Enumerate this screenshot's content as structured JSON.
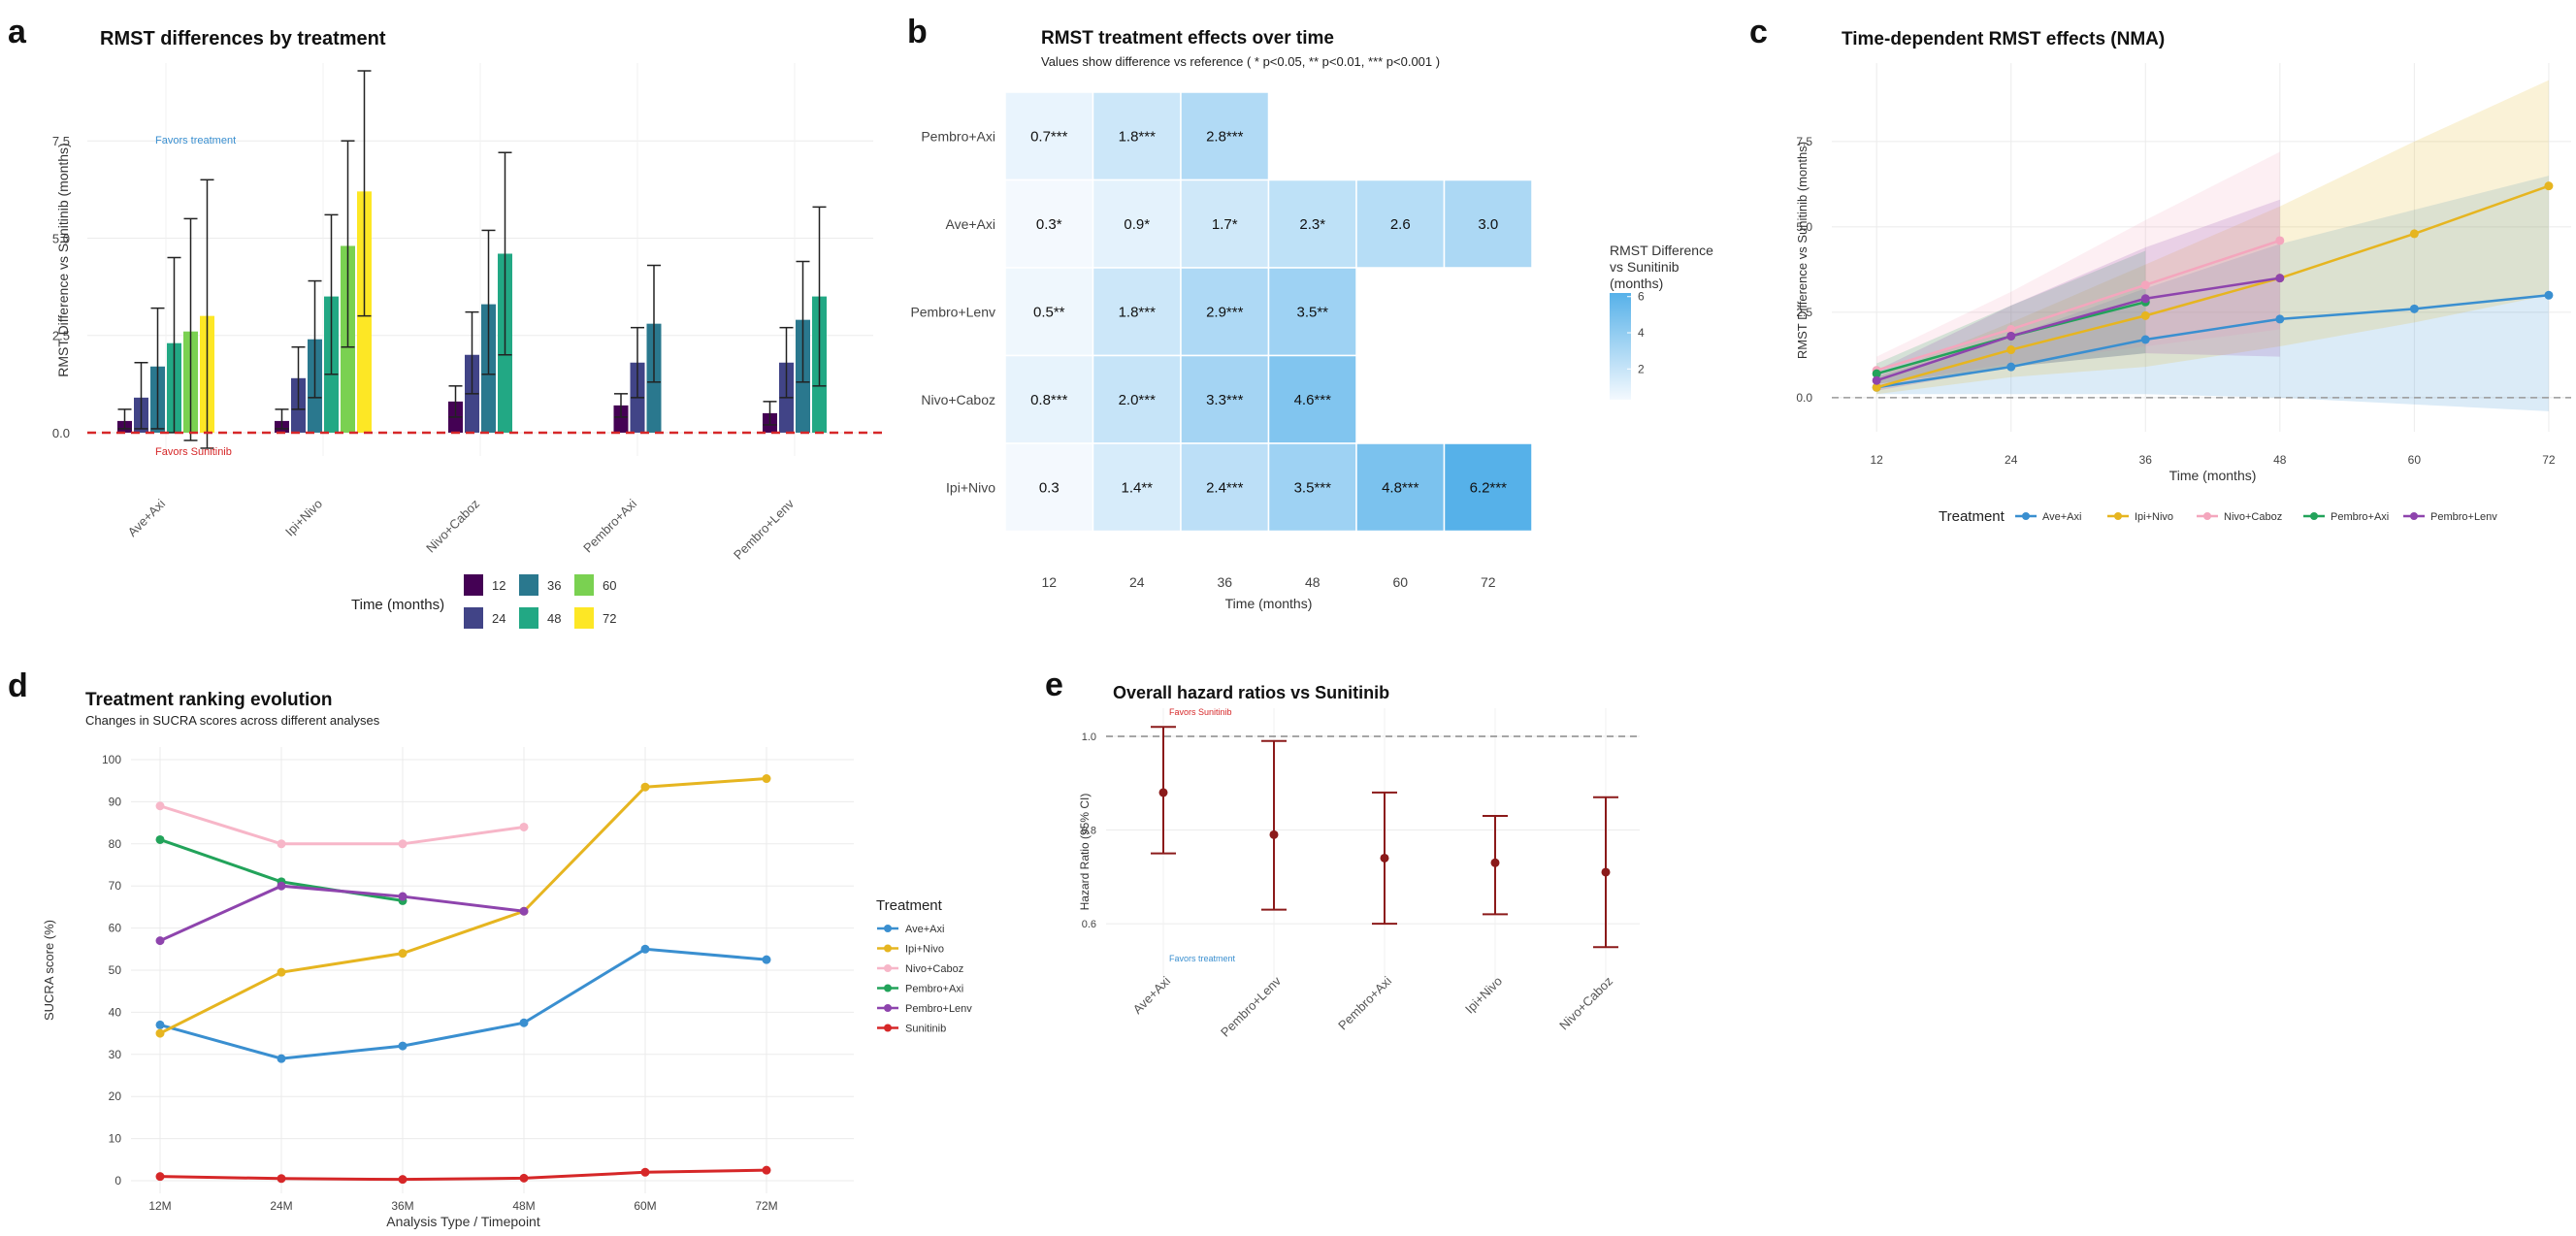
{
  "panels": {
    "a": {
      "letter": "a",
      "chart_data": {
        "type": "bar",
        "title": "RMST differences by treatment",
        "xlabel": "",
        "ylabel": "RMST Difference vs Sunitinib (months)",
        "ylim": [
          -0.6,
          9.5
        ],
        "yticks": [
          "0.0",
          "2.5",
          "5.0",
          "7.5"
        ],
        "ytick_values": [
          0,
          2.5,
          5,
          7.5
        ],
        "categories": [
          "Ave+Axi",
          "Ipi+Nivo",
          "Nivo+Caboz",
          "Pembro+Axi",
          "Pembro+Lenv"
        ],
        "legend_title": "Time (months)",
        "legend_position": "bottom",
        "grid": true,
        "reference_line": 0,
        "annotations": [
          "Favors treatment",
          "Favors Sunitinib"
        ],
        "series": [
          {
            "name": "12",
            "color": "#440154",
            "values": [
              0.3,
              0.3,
              0.8,
              0.7,
              0.5
            ],
            "lower": [
              0.1,
              0.1,
              0.4,
              0.4,
              0.2
            ],
            "upper": [
              0.6,
              0.6,
              1.2,
              1.0,
              0.8
            ]
          },
          {
            "name": "24",
            "color": "#414487",
            "values": [
              0.9,
              1.4,
              2.0,
              1.8,
              1.8
            ],
            "lower": [
              0.1,
              0.6,
              1.0,
              0.9,
              0.9
            ],
            "upper": [
              1.8,
              2.2,
              3.1,
              2.7,
              2.7
            ]
          },
          {
            "name": "36",
            "color": "#2A788E",
            "values": [
              1.7,
              2.4,
              3.3,
              2.8,
              2.9
            ],
            "lower": [
              0.1,
              0.9,
              1.5,
              1.3,
              1.3
            ],
            "upper": [
              3.2,
              3.9,
              5.2,
              4.3,
              4.4
            ]
          },
          {
            "name": "48",
            "color": "#22A884",
            "values": [
              2.3,
              3.5,
              4.6,
              null,
              3.5
            ],
            "lower": [
              0.0,
              1.5,
              2.0,
              null,
              1.2
            ],
            "upper": [
              4.5,
              5.6,
              7.2,
              null,
              5.8
            ]
          },
          {
            "name": "60",
            "color": "#7AD151",
            "values": [
              2.6,
              4.8,
              null,
              null,
              null
            ],
            "lower": [
              -0.2,
              2.2,
              null,
              null,
              null
            ],
            "upper": [
              5.5,
              7.5,
              null,
              null,
              null
            ]
          },
          {
            "name": "72",
            "color": "#FDE725",
            "values": [
              3.0,
              6.2,
              null,
              null,
              null
            ],
            "lower": [
              -0.4,
              3.0,
              null,
              null,
              null
            ],
            "upper": [
              6.5,
              9.3,
              null,
              null,
              null
            ]
          }
        ]
      }
    },
    "b": {
      "letter": "b",
      "chart_data": {
        "type": "heatmap",
        "title": "RMST treatment effects over time",
        "subtitle": "Values show difference vs reference ( * p<0.05, ** p<0.01, *** p<0.001 )",
        "xlabel": "Time (months)",
        "ylabel": "",
        "x": [
          "12",
          "24",
          "36",
          "48",
          "60",
          "72"
        ],
        "y": [
          "Pembro+Axi",
          "Ave+Axi",
          "Pembro+Lenv",
          "Nivo+Caboz",
          "Ipi+Nivo"
        ],
        "values": [
          [
            0.7,
            1.8,
            2.8,
            null,
            null,
            null
          ],
          [
            0.3,
            0.9,
            1.7,
            2.3,
            2.6,
            3.0
          ],
          [
            0.5,
            1.8,
            2.9,
            3.5,
            null,
            null
          ],
          [
            0.8,
            2.0,
            3.3,
            4.6,
            null,
            null
          ],
          [
            0.3,
            1.4,
            2.4,
            3.5,
            4.8,
            6.2
          ]
        ],
        "labels": [
          [
            "0.7***",
            "1.8***",
            "2.8***",
            "",
            "",
            ""
          ],
          [
            "0.3*",
            "0.9*",
            "1.7*",
            "2.3*",
            "2.6",
            "3.0"
          ],
          [
            "0.5**",
            "1.8***",
            "2.9***",
            "3.5**",
            "",
            ""
          ],
          [
            "0.8***",
            "2.0***",
            "3.3***",
            "4.6***",
            "",
            ""
          ],
          [
            "0.3",
            "1.4**",
            "2.4***",
            "3.5***",
            "4.8***",
            "6.2***"
          ]
        ],
        "colorbar": {
          "title_lines": [
            "RMST Difference",
            "vs Sunitinib",
            "(months)"
          ],
          "ticks": [
            "2",
            "4",
            "6"
          ],
          "tick_values": [
            2,
            4,
            6
          ],
          "range": [
            0.3,
            6.2
          ],
          "low_color": "#f4f9fe",
          "high_color": "#56b1e9"
        }
      }
    },
    "c": {
      "letter": "c",
      "chart_data": {
        "type": "line",
        "title": "Time-dependent RMST effects (NMA)",
        "xlabel": "Time (months)",
        "ylabel": "RMST Difference vs Sunitinib (months)",
        "x": [
          12,
          24,
          36,
          48,
          60,
          72
        ],
        "xticks": [
          "12",
          "24",
          "36",
          "48",
          "60",
          "72"
        ],
        "xlim": [
          8,
          74
        ],
        "ylim": [
          -1.0,
          9.8
        ],
        "yticks": [
          "0.0",
          "2.5",
          "5.0",
          "7.5"
        ],
        "ytick_values": [
          0,
          2.5,
          5,
          7.5
        ],
        "legend_title": "Treatment",
        "legend_position": "bottom",
        "grid": true,
        "reference_line": 0,
        "series": [
          {
            "name": "Ave+Axi",
            "color": "#3a8fd0",
            "values": [
              0.3,
              0.9,
              1.7,
              2.3,
              2.6,
              3.0
            ],
            "lower": [
              0.1,
              0.1,
              0.1,
              0.0,
              -0.2,
              -0.4
            ],
            "upper": [
              0.6,
              1.8,
              3.2,
              4.5,
              5.5,
              6.5
            ]
          },
          {
            "name": "Ipi+Nivo",
            "color": "#e6b520",
            "values": [
              0.3,
              1.4,
              2.4,
              3.5,
              4.8,
              6.2
            ],
            "lower": [
              0.1,
              0.6,
              0.9,
              1.5,
              2.2,
              3.0
            ],
            "upper": [
              0.6,
              2.2,
              3.9,
              5.6,
              7.5,
              9.3
            ]
          },
          {
            "name": "Nivo+Caboz",
            "color": "#f4a6bd",
            "values": [
              0.8,
              2.0,
              3.3,
              4.6,
              null,
              null
            ],
            "lower": [
              0.4,
              1.0,
              1.5,
              2.0,
              null,
              null
            ],
            "upper": [
              1.2,
              3.1,
              5.2,
              7.2,
              null,
              null
            ]
          },
          {
            "name": "Pembro+Axi",
            "color": "#22a35a",
            "values": [
              0.7,
              1.8,
              2.8,
              null,
              null,
              null
            ],
            "lower": [
              0.4,
              0.9,
              1.3,
              null,
              null,
              null
            ],
            "upper": [
              1.0,
              2.7,
              4.3,
              null,
              null,
              null
            ]
          },
          {
            "name": "Pembro+Lenv",
            "color": "#8e44ad",
            "values": [
              0.5,
              1.8,
              2.9,
              3.5,
              null,
              null
            ],
            "lower": [
              0.2,
              0.9,
              1.3,
              1.2,
              null,
              null
            ],
            "upper": [
              0.8,
              2.7,
              4.4,
              5.8,
              null,
              null
            ]
          }
        ]
      }
    },
    "d": {
      "letter": "d",
      "chart_data": {
        "type": "line",
        "title": "Treatment ranking evolution",
        "subtitle": "Changes in SUCRA scores across different analyses",
        "xlabel": "Analysis Type / Timepoint",
        "ylabel": "SUCRA score (%)",
        "x": [
          "12M",
          "24M",
          "36M",
          "48M",
          "60M",
          "72M"
        ],
        "ylim": [
          -3,
          103
        ],
        "yticks": [
          "0",
          "10",
          "20",
          "30",
          "40",
          "50",
          "60",
          "70",
          "80",
          "90",
          "100"
        ],
        "ytick_values": [
          0,
          10,
          20,
          30,
          40,
          50,
          60,
          70,
          80,
          90,
          100
        ],
        "legend_title": "Treatment",
        "legend_position": "right",
        "grid": true,
        "series": [
          {
            "name": "Ave+Axi",
            "color": "#3a8fd0",
            "values": [
              37,
              29,
              32,
              37.5,
              55,
              52.5
            ]
          },
          {
            "name": "Ipi+Nivo",
            "color": "#e6b520",
            "values": [
              35,
              49.5,
              54,
              64,
              93.5,
              95.5
            ]
          },
          {
            "name": "Nivo+Caboz",
            "color": "#f7b6c8",
            "values": [
              89,
              80,
              80,
              84,
              null,
              null
            ]
          },
          {
            "name": "Pembro+Axi",
            "color": "#22a35a",
            "values": [
              81,
              71,
              66.5,
              null,
              null,
              null
            ]
          },
          {
            "name": "Pembro+Lenv",
            "color": "#8e44ad",
            "values": [
              57,
              70,
              67.5,
              64,
              null,
              null
            ]
          },
          {
            "name": "Sunitinib",
            "color": "#d62728",
            "values": [
              1,
              0.5,
              0.3,
              0.6,
              2,
              2.5
            ]
          }
        ]
      }
    },
    "e": {
      "letter": "e",
      "chart_data": {
        "type": "scatter",
        "title": "Overall hazard ratios vs Sunitinib",
        "xlabel": "",
        "ylabel": "Hazard Ratio (95% CI)",
        "categories": [
          "Ave+Axi",
          "Pembro+Lenv",
          "Pembro+Axi",
          "Ipi+Nivo",
          "Nivo+Caboz"
        ],
        "values": [
          0.88,
          0.79,
          0.74,
          0.73,
          0.71
        ],
        "lower": [
          0.75,
          0.63,
          0.6,
          0.62,
          0.55
        ],
        "upper": [
          1.02,
          0.99,
          0.88,
          0.83,
          0.87
        ],
        "ylim": [
          0.48,
          1.06
        ],
        "yticks": [
          "0.6",
          "0.8",
          "1.0"
        ],
        "ytick_values": [
          0.6,
          0.8,
          1.0
        ],
        "reference_line": 1.0,
        "color": "#8b1a1a",
        "annotations": [
          "Favors Sunitinib",
          "Favors treatment"
        ],
        "grid": true
      }
    }
  }
}
